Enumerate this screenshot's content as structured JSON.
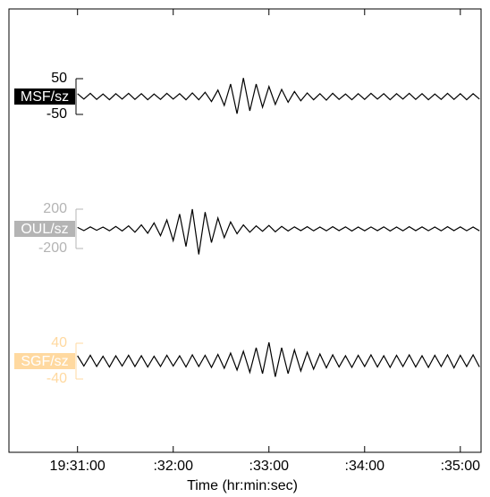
{
  "chart_data": {
    "type": "line",
    "xlabel": "Time (hr:min:sec)",
    "x": [
      0,
      4,
      8,
      12,
      16,
      20,
      24,
      28,
      32,
      36,
      40,
      44,
      48,
      52,
      56,
      60,
      64,
      68,
      72,
      76,
      80,
      84,
      88,
      92,
      96,
      100,
      104,
      108,
      112,
      116,
      120,
      124,
      128,
      132,
      136,
      140,
      144,
      148,
      152,
      156,
      160,
      164,
      168,
      172,
      176,
      180,
      184,
      188,
      192,
      196,
      200,
      204,
      208,
      212,
      216,
      220,
      224,
      228,
      232,
      236,
      240,
      244,
      248,
      252
    ],
    "xlim": [
      -43,
      253
    ],
    "xticks": [
      {
        "value": 0,
        "label": "19:31:00"
      },
      {
        "value": 60,
        "label": ":32:00"
      },
      {
        "value": 120,
        "label": ":33:00"
      },
      {
        "value": 180,
        "label": ":34:00"
      },
      {
        "value": 240,
        "label": ":35:00"
      }
    ],
    "series": [
      {
        "name": "MSF/sz",
        "color": "#000000",
        "label_color": "#000000",
        "ylim": [
          -185,
          185
        ],
        "yticks": [
          50,
          -50
        ],
        "values": [
          8,
          -7,
          9,
          -8,
          7,
          -9,
          8,
          -7,
          9,
          -8,
          8,
          -9,
          7,
          -8,
          9,
          -7,
          8,
          -9,
          10,
          -9,
          12,
          -14,
          18,
          -25,
          35,
          -48,
          52,
          -40,
          35,
          -30,
          28,
          -22,
          20,
          -16,
          14,
          -12,
          10,
          -9,
          8,
          -10,
          9,
          -8,
          7,
          -9,
          8,
          -8,
          9,
          -7,
          8,
          -9,
          8,
          -7,
          9,
          -8,
          8,
          -9,
          7,
          -8,
          9,
          -8,
          8,
          -9,
          8,
          -7
        ]
      },
      {
        "name": "OUL/sz",
        "color": "#000000",
        "label_color": "#b4b4b4",
        "ylim": [
          -673,
          673
        ],
        "yticks": [
          200,
          -200
        ],
        "values": [
          15,
          -18,
          20,
          -15,
          18,
          -20,
          25,
          -22,
          30,
          -35,
          40,
          -45,
          60,
          -70,
          90,
          -120,
          150,
          -180,
          200,
          -260,
          170,
          -140,
          110,
          -90,
          70,
          -50,
          40,
          -35,
          30,
          -25,
          35,
          -30,
          25,
          -22,
          20,
          -18,
          22,
          -20,
          18,
          -20,
          22,
          -18,
          20,
          -22,
          18,
          -20,
          19,
          -18,
          20,
          -22,
          18,
          -20,
          22,
          -18,
          20,
          -19,
          18,
          -20,
          22,
          -18,
          20,
          -19,
          18,
          -20
        ]
      },
      {
        "name": "SGF/sz",
        "color": "#000000",
        "label_color": "#ffd9a0",
        "ylim": [
          -148,
          148
        ],
        "yticks": [
          40,
          -40
        ],
        "values": [
          12,
          -11,
          13,
          -12,
          11,
          -13,
          12,
          -11,
          13,
          -12,
          12,
          -13,
          11,
          -12,
          13,
          -11,
          12,
          -13,
          14,
          -12,
          13,
          -14,
          15,
          -16,
          18,
          -20,
          22,
          -25,
          30,
          -28,
          42,
          -35,
          30,
          -28,
          25,
          -22,
          20,
          -18,
          16,
          -15,
          14,
          -13,
          12,
          -14,
          13,
          -12,
          14,
          -13,
          12,
          -14,
          13,
          -12,
          14,
          -13,
          12,
          -14,
          13,
          -12,
          14,
          -15,
          13,
          -12,
          14,
          -13
        ]
      }
    ]
  }
}
